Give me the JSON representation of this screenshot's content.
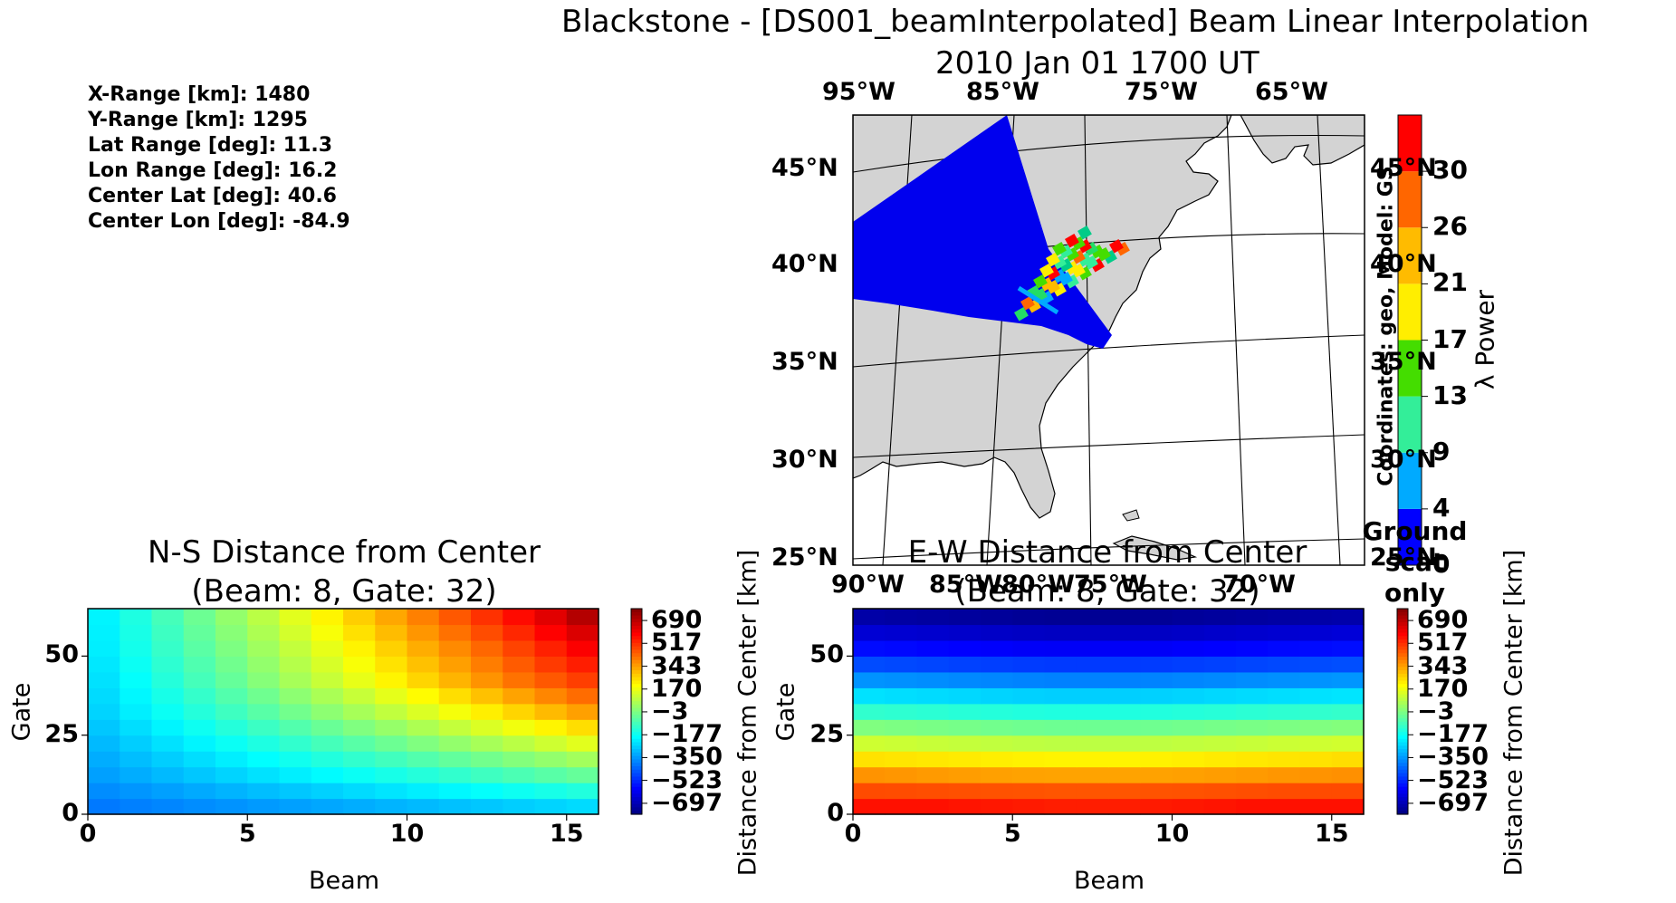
{
  "figure": {
    "title_line1": "Blackstone - [DS001_beamInterpolated] Beam Linear Interpolation",
    "title_line2": "2010 Jan 01 1700 UT"
  },
  "stats": [
    "X-Range [km]: 1480",
    "Y-Range [km]: 1295",
    "Lat Range [deg]: 11.3",
    "Lon Range [deg]: 16.2",
    "Center Lat [deg]: 40.6",
    "Center Lon [deg]: -84.9"
  ],
  "map": {
    "top_lon_labels": [
      "95°W",
      "85°W",
      "75°W",
      "65°W"
    ],
    "bottom_lon_labels": [
      "90°W",
      "85°W",
      "80°W",
      "75°W",
      "70°W"
    ],
    "left_lat_labels": [
      "45°N",
      "40°N",
      "35°N",
      "30°N",
      "25°N"
    ],
    "right_lat_labels": [
      "45°N",
      "40°N",
      "35°N",
      "30°N",
      "25°N"
    ],
    "side_text": "Coordinates: geo, Model: GS",
    "colorbar": {
      "label": "λ Power",
      "ticks": [
        "0",
        "4",
        "9",
        "13",
        "17",
        "21",
        "26",
        "30"
      ],
      "ground_scatter_label": "Ground scat only",
      "colors": [
        "#0000ff",
        "#00aaff",
        "#33ee99",
        "#44dd00",
        "#ffee00",
        "#ffbb00",
        "#ff6600",
        "#ff0000"
      ]
    },
    "colors": {
      "land": "#d3d3d3",
      "fov": "#0000ee"
    }
  },
  "chart_data": [
    {
      "type": "heatmap",
      "title": "N-S Distance from Center",
      "subtitle": "(Beam: 8, Gate: 32)",
      "xlabel": "Beam",
      "ylabel": "Gate",
      "xlim": [
        0,
        16
      ],
      "ylim": [
        0,
        65
      ],
      "xticks": [
        "0",
        "5",
        "10",
        "15"
      ],
      "yticks": [
        "0",
        "25",
        "50"
      ],
      "colorbar_label": "Distance from Center [km]",
      "colorbar_ticks": [
        "690",
        "517",
        "343",
        "170",
        "−3",
        "−177",
        "−350",
        "−523",
        "−697"
      ],
      "vmin": -780,
      "vmax": 780,
      "n_beams": 16,
      "n_gates": 13,
      "row_gates": [
        0,
        5,
        10,
        15,
        20,
        25,
        30,
        35,
        40,
        45,
        50,
        55,
        60
      ],
      "values": [
        [
          -400,
          -390,
          -380,
          -370,
          -360,
          -350,
          -340,
          -330,
          -320,
          -310,
          -300,
          -290,
          -280,
          -270,
          -260,
          -250
        ],
        [
          -370,
          -355,
          -340,
          -325,
          -310,
          -295,
          -280,
          -265,
          -250,
          -235,
          -220,
          -205,
          -190,
          -175,
          -160,
          -145
        ],
        [
          -340,
          -320,
          -300,
          -280,
          -260,
          -240,
          -220,
          -200,
          -180,
          -160,
          -140,
          -120,
          -100,
          -80,
          -60,
          -40
        ],
        [
          -320,
          -295,
          -270,
          -245,
          -220,
          -195,
          -170,
          -145,
          -120,
          -95,
          -70,
          -45,
          -20,
          5,
          30,
          55
        ],
        [
          -300,
          -270,
          -240,
          -210,
          -180,
          -150,
          -120,
          -90,
          -60,
          -30,
          0,
          30,
          60,
          90,
          120,
          150
        ],
        [
          -280,
          -245,
          -210,
          -175,
          -140,
          -105,
          -70,
          -35,
          0,
          35,
          70,
          105,
          140,
          175,
          210,
          245
        ],
        [
          -260,
          -220,
          -180,
          -140,
          -100,
          -60,
          -20,
          20,
          60,
          100,
          140,
          180,
          220,
          260,
          300,
          340
        ],
        [
          -250,
          -205,
          -160,
          -115,
          -70,
          -25,
          20,
          65,
          110,
          155,
          200,
          245,
          290,
          335,
          380,
          420
        ],
        [
          -240,
          -190,
          -140,
          -90,
          -40,
          10,
          60,
          110,
          160,
          210,
          260,
          310,
          360,
          410,
          450,
          490
        ],
        [
          -230,
          -178,
          -126,
          -74,
          -22,
          30,
          82,
          134,
          186,
          238,
          290,
          342,
          394,
          446,
          496,
          540
        ],
        [
          -220,
          -166,
          -112,
          -58,
          -4,
          50,
          104,
          158,
          212,
          266,
          320,
          374,
          428,
          482,
          536,
          590
        ],
        [
          -215,
          -158,
          -101,
          -44,
          13,
          70,
          127,
          184,
          241,
          298,
          355,
          412,
          469,
          526,
          583,
          640
        ],
        [
          -210,
          -150,
          -90,
          -30,
          30,
          90,
          150,
          210,
          270,
          330,
          390,
          450,
          510,
          570,
          630,
          700
        ]
      ]
    },
    {
      "type": "heatmap",
      "title": "E-W Distance from Center",
      "subtitle": "(Beam: 8, Gate: 32)",
      "xlabel": "Beam",
      "ylabel": "Gate",
      "xlim": [
        0,
        16
      ],
      "ylim": [
        0,
        65
      ],
      "xticks": [
        "0",
        "5",
        "10",
        "15"
      ],
      "yticks": [
        "0",
        "25",
        "50"
      ],
      "colorbar_label": "Distance from Center [km]",
      "colorbar_ticks": [
        "690",
        "517",
        "343",
        "170",
        "−3",
        "−177",
        "−350",
        "−523",
        "−697"
      ],
      "vmin": -780,
      "vmax": 780,
      "n_beams": 16,
      "n_gates": 13,
      "row_gates": [
        0,
        5,
        10,
        15,
        20,
        25,
        30,
        35,
        40,
        45,
        50,
        55,
        60
      ],
      "values": [
        [
          560,
          560,
          560,
          555,
          550,
          545,
          540,
          540,
          540,
          545,
          550,
          555,
          560,
          560,
          560,
          560
        ],
        [
          470,
          468,
          465,
          462,
          460,
          458,
          455,
          455,
          455,
          458,
          460,
          462,
          465,
          468,
          470,
          470
        ],
        [
          360,
          355,
          350,
          345,
          340,
          338,
          335,
          335,
          335,
          338,
          340,
          345,
          350,
          355,
          360,
          365
        ],
        [
          240,
          235,
          230,
          225,
          220,
          215,
          212,
          212,
          212,
          215,
          220,
          225,
          230,
          235,
          240,
          245
        ],
        [
          120,
          115,
          110,
          105,
          100,
          95,
          92,
          92,
          92,
          95,
          100,
          105,
          110,
          115,
          120,
          125
        ],
        [
          0,
          -5,
          -10,
          -15,
          -20,
          -25,
          -28,
          -28,
          -28,
          -25,
          -20,
          -15,
          -10,
          -5,
          0,
          5
        ],
        [
          -120,
          -125,
          -130,
          -135,
          -140,
          -145,
          -148,
          -148,
          -148,
          -145,
          -140,
          -135,
          -130,
          -125,
          -120,
          -115
        ],
        [
          -240,
          -245,
          -250,
          -255,
          -260,
          -265,
          -268,
          -268,
          -268,
          -265,
          -260,
          -255,
          -250,
          -245,
          -240,
          -235
        ],
        [
          -360,
          -365,
          -370,
          -375,
          -380,
          -385,
          -388,
          -388,
          -388,
          -385,
          -380,
          -375,
          -370,
          -365,
          -360,
          -355
        ],
        [
          -470,
          -475,
          -480,
          -485,
          -490,
          -495,
          -498,
          -498,
          -498,
          -495,
          -490,
          -485,
          -480,
          -475,
          -470,
          -465
        ],
        [
          -570,
          -575,
          -580,
          -585,
          -590,
          -595,
          -598,
          -598,
          -598,
          -595,
          -590,
          -585,
          -580,
          -575,
          -570,
          -565
        ],
        [
          -650,
          -655,
          -660,
          -665,
          -670,
          -675,
          -678,
          -678,
          -678,
          -675,
          -670,
          -665,
          -660,
          -655,
          -650,
          -645
        ],
        [
          -720,
          -725,
          -730,
          -735,
          -740,
          -745,
          -748,
          -748,
          -748,
          -745,
          -740,
          -735,
          -730,
          -725,
          -720,
          -715
        ]
      ]
    }
  ]
}
